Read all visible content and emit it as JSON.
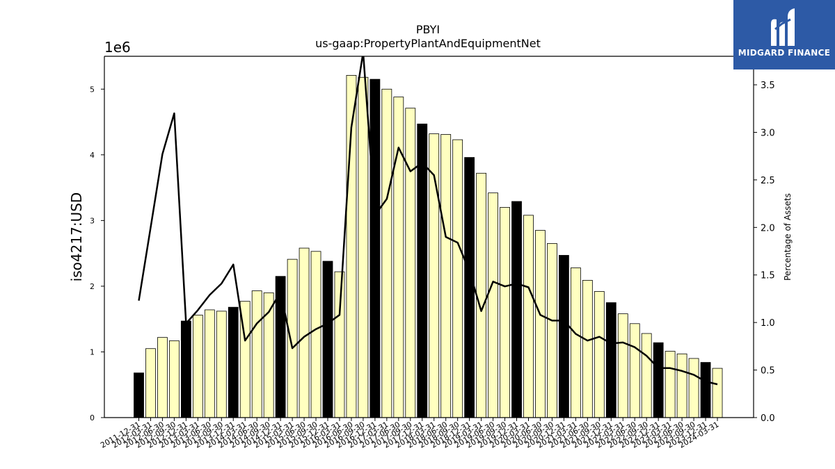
{
  "chart_data": {
    "type": "bar",
    "title": "PBYI",
    "subtitle": "us-gaap:PropertyPlantAndEquipmentNet",
    "ylabel": "iso4217:USD",
    "y_offset_label": "1e6",
    "y2label": "Percentage of Assets",
    "ylim": [
      0,
      5500000
    ],
    "y2lim": [
      0,
      3.8
    ],
    "yticks": [
      "0",
      "1",
      "2",
      "3",
      "4",
      "5"
    ],
    "y2ticks": [
      "0.0",
      "0.5",
      "1.0",
      "1.5",
      "2.0",
      "2.5",
      "3.0",
      "3.5"
    ],
    "grid": false,
    "categories": [
      "2011-12-31",
      "2012-03-31",
      "2012-06-30",
      "2012-09-30",
      "2012-12-31",
      "2013-03-31",
      "2013-06-30",
      "2013-09-30",
      "2013-12-31",
      "2014-03-31",
      "2014-06-30",
      "2014-09-30",
      "2014-12-31",
      "2015-03-31",
      "2015-06-30",
      "2015-09-30",
      "2015-12-31",
      "2016-03-31",
      "2016-06-30",
      "2016-09-30",
      "2016-12-31",
      "2017-03-31",
      "2017-06-30",
      "2017-09-30",
      "2017-12-31",
      "2018-03-31",
      "2018-06-30",
      "2018-09-30",
      "2018-12-31",
      "2019-03-31",
      "2019-06-30",
      "2019-09-30",
      "2019-12-31",
      "2020-03-31",
      "2020-06-30",
      "2020-09-30",
      "2020-12-31",
      "2021-03-31",
      "2021-06-30",
      "2021-09-30",
      "2021-12-31",
      "2022-03-31",
      "2022-06-30",
      "2022-09-30",
      "2022-12-31",
      "2023-03-31",
      "2023-06-30",
      "2023-09-30",
      "2023-12-31",
      "2024-03-31"
    ],
    "xtick_labels": [
      "2011-12-31",
      "2012-03-31",
      "2012-06-30",
      "2012-09-30",
      "2012-12-31",
      "2013-03-31",
      "2013-06-30",
      "2013-09-30",
      "2013-12-31",
      "2014-03-31",
      "2014-06-30",
      "2014-09-30",
      "2014-12-31",
      "2015-03-31",
      "2015-06-30",
      "2015-09-30",
      "2015-12-31",
      "2016-03-31",
      "2016-06-30",
      "2016-09-30",
      "2016-12-31",
      "2017-03-31",
      "2017-06-30",
      "2017-09-30",
      "2017-12-31",
      "2018-03-31",
      "2018-06-30",
      "2018-09-30",
      "2018-12-31",
      "2019-03-31",
      "2019-06-30",
      "2019-09-30",
      "2019-12-31",
      "2020-03-31",
      "2020-06-30",
      "2020-09-30",
      "2020-12-31",
      "2021-03-31",
      "2021-06-30",
      "2021-09-30",
      "2021-12-31",
      "2022-03-31",
      "2022-06-30",
      "2022-09-30",
      "2022-12-31",
      "2023-03-31",
      "2023-06-30",
      "2023-09-30",
      "2023-12-31",
      "2024-03-31"
    ],
    "series": [
      {
        "kind": "bar",
        "axis": "left",
        "values": [
          680000,
          1050000,
          1220000,
          1170000,
          1470000,
          1560000,
          1640000,
          1620000,
          1680000,
          1770000,
          1930000,
          1900000,
          2150000,
          2410000,
          2580000,
          2530000,
          2380000,
          2220000,
          5210000,
          5180000,
          5150000,
          5000000,
          4880000,
          4710000,
          4470000,
          4320000,
          4310000,
          4230000,
          3960000,
          3720000,
          3420000,
          3200000,
          3290000,
          3080000,
          2850000,
          2650000,
          2470000,
          2280000,
          2090000,
          1920000,
          1750000,
          1580000,
          1430000,
          1280000,
          1140000,
          1010000,
          970000,
          900000,
          840000,
          750000
        ],
        "bar_colors": {
          "fiscal_year_end": "#000000",
          "quarter": "#ffffc0"
        }
      },
      {
        "kind": "line",
        "axis": "right",
        "values": [
          1.23,
          2.0,
          2.77,
          3.2,
          0.99,
          1.13,
          1.29,
          1.41,
          1.61,
          0.81,
          0.99,
          1.11,
          1.32,
          0.73,
          0.85,
          0.93,
          0.99,
          1.08,
          3.05,
          3.84,
          2.13,
          2.3,
          2.84,
          2.59,
          2.68,
          2.55,
          1.9,
          1.84,
          1.54,
          1.12,
          1.43,
          1.38,
          1.41,
          1.37,
          1.08,
          1.02,
          1.02,
          0.88,
          0.81,
          0.85,
          0.78,
          0.79,
          0.74,
          0.65,
          0.52,
          0.52,
          0.49,
          0.45,
          0.38,
          0.35
        ],
        "color": "#000000"
      }
    ]
  },
  "logo": {
    "text": "MIDGARD FINANCE",
    "bg_color": "#2d5aa6",
    "icon": "midgard-m-logo"
  }
}
